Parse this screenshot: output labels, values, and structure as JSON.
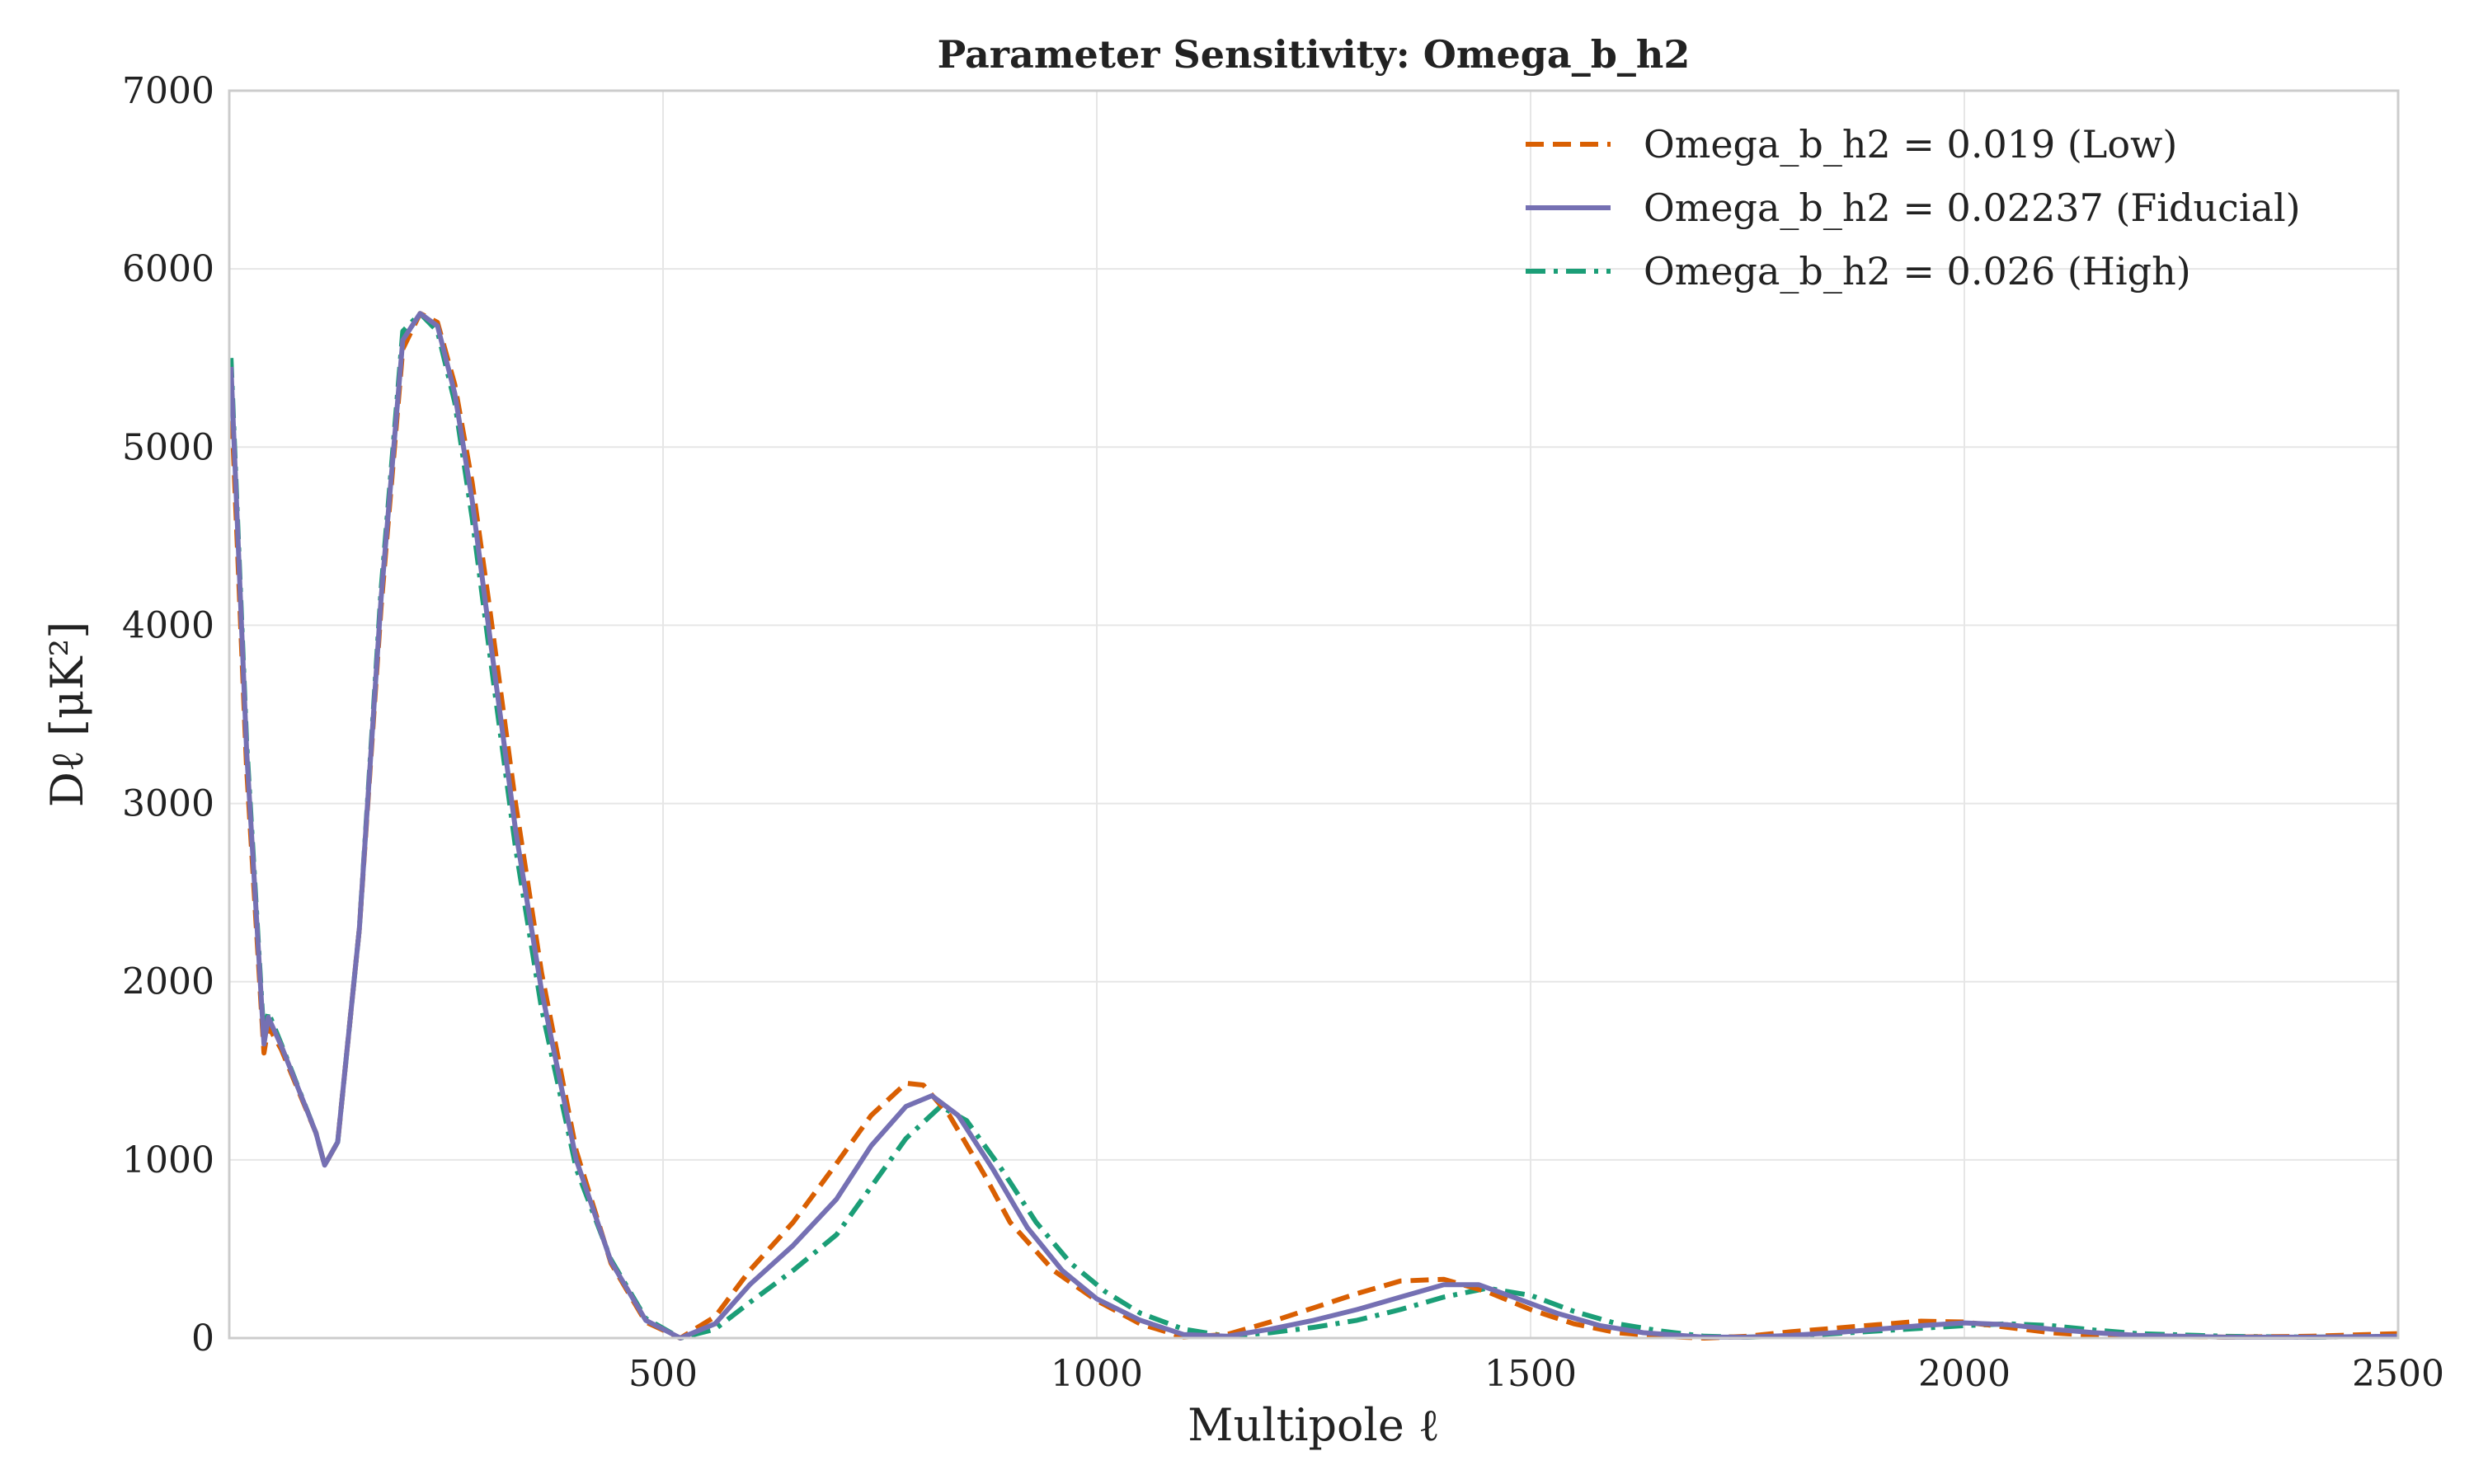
{
  "chart_data": {
    "type": "line",
    "title": "Parameter Sensitivity: Omega_b_h2",
    "xlabel": "Multipole ℓ",
    "ylabel": "Dℓ [μK²]",
    "xlim": [
      0,
      2500
    ],
    "ylim": [
      0,
      7000
    ],
    "xticks": [
      500,
      1000,
      1500,
      2000,
      2500
    ],
    "yticks": [
      0,
      1000,
      2000,
      3000,
      4000,
      5000,
      6000,
      7000
    ],
    "grid": true,
    "legend_position": "top-right",
    "series": [
      {
        "name": "Omega_b_h2 = 0.019 (Low)",
        "color": "#d95f02",
        "dash": "dashed",
        "points": [
          [
            2,
            5300
          ],
          [
            20,
            3200
          ],
          [
            40,
            1600
          ],
          [
            45,
            1750
          ],
          [
            60,
            1620
          ],
          [
            100,
            1150
          ],
          [
            110,
            970
          ],
          [
            125,
            1100
          ],
          [
            150,
            2300
          ],
          [
            175,
            4100
          ],
          [
            200,
            5550
          ],
          [
            220,
            5750
          ],
          [
            240,
            5700
          ],
          [
            260,
            5350
          ],
          [
            280,
            4800
          ],
          [
            300,
            4100
          ],
          [
            330,
            3000
          ],
          [
            360,
            2050
          ],
          [
            400,
            1050
          ],
          [
            440,
            420
          ],
          [
            480,
            90
          ],
          [
            520,
            0
          ],
          [
            560,
            120
          ],
          [
            600,
            380
          ],
          [
            650,
            650
          ],
          [
            700,
            980
          ],
          [
            740,
            1250
          ],
          [
            780,
            1430
          ],
          [
            800,
            1420
          ],
          [
            830,
            1250
          ],
          [
            870,
            920
          ],
          [
            900,
            650
          ],
          [
            950,
            380
          ],
          [
            1000,
            210
          ],
          [
            1050,
            80
          ],
          [
            1100,
            5
          ],
          [
            1150,
            20
          ],
          [
            1200,
            90
          ],
          [
            1250,
            170
          ],
          [
            1300,
            250
          ],
          [
            1350,
            320
          ],
          [
            1400,
            330
          ],
          [
            1450,
            260
          ],
          [
            1500,
            160
          ],
          [
            1550,
            80
          ],
          [
            1600,
            30
          ],
          [
            1650,
            10
          ],
          [
            1700,
            0
          ],
          [
            1750,
            10
          ],
          [
            1800,
            35
          ],
          [
            1850,
            55
          ],
          [
            1900,
            75
          ],
          [
            1950,
            95
          ],
          [
            2000,
            90
          ],
          [
            2050,
            60
          ],
          [
            2100,
            30
          ],
          [
            2150,
            15
          ],
          [
            2200,
            10
          ],
          [
            2300,
            5
          ],
          [
            2400,
            10
          ],
          [
            2500,
            25
          ]
        ]
      },
      {
        "name": "Omega_b_h2 = 0.02237 (Fiducial)",
        "color": "#7570b3",
        "dash": "solid",
        "points": [
          [
            2,
            5450
          ],
          [
            20,
            3300
          ],
          [
            40,
            1650
          ],
          [
            45,
            1800
          ],
          [
            60,
            1640
          ],
          [
            100,
            1150
          ],
          [
            110,
            970
          ],
          [
            125,
            1100
          ],
          [
            150,
            2300
          ],
          [
            175,
            4150
          ],
          [
            200,
            5600
          ],
          [
            220,
            5750
          ],
          [
            240,
            5680
          ],
          [
            260,
            5300
          ],
          [
            280,
            4700
          ],
          [
            300,
            3950
          ],
          [
            330,
            2850
          ],
          [
            360,
            1950
          ],
          [
            400,
            1000
          ],
          [
            440,
            430
          ],
          [
            480,
            100
          ],
          [
            520,
            0
          ],
          [
            560,
            80
          ],
          [
            600,
            300
          ],
          [
            650,
            520
          ],
          [
            700,
            780
          ],
          [
            740,
            1080
          ],
          [
            780,
            1300
          ],
          [
            810,
            1360
          ],
          [
            840,
            1250
          ],
          [
            880,
            950
          ],
          [
            920,
            620
          ],
          [
            960,
            380
          ],
          [
            1000,
            220
          ],
          [
            1050,
            100
          ],
          [
            1100,
            20
          ],
          [
            1150,
            10
          ],
          [
            1200,
            50
          ],
          [
            1250,
            100
          ],
          [
            1300,
            160
          ],
          [
            1350,
            230
          ],
          [
            1400,
            300
          ],
          [
            1440,
            300
          ],
          [
            1480,
            230
          ],
          [
            1530,
            140
          ],
          [
            1580,
            70
          ],
          [
            1630,
            30
          ],
          [
            1700,
            5
          ],
          [
            1750,
            5
          ],
          [
            1800,
            15
          ],
          [
            1850,
            30
          ],
          [
            1900,
            50
          ],
          [
            1950,
            70
          ],
          [
            2000,
            85
          ],
          [
            2050,
            75
          ],
          [
            2100,
            50
          ],
          [
            2150,
            30
          ],
          [
            2200,
            15
          ],
          [
            2300,
            5
          ],
          [
            2400,
            5
          ],
          [
            2500,
            10
          ]
        ]
      },
      {
        "name": "Omega_b_h2 = 0.026 (High)",
        "color": "#1b9e77",
        "dash": "dashdot",
        "points": [
          [
            2,
            5500
          ],
          [
            20,
            3350
          ],
          [
            40,
            1680
          ],
          [
            45,
            1830
          ],
          [
            60,
            1650
          ],
          [
            100,
            1150
          ],
          [
            110,
            970
          ],
          [
            125,
            1100
          ],
          [
            150,
            2300
          ],
          [
            175,
            4200
          ],
          [
            200,
            5650
          ],
          [
            220,
            5750
          ],
          [
            240,
            5650
          ],
          [
            260,
            5250
          ],
          [
            280,
            4600
          ],
          [
            300,
            3850
          ],
          [
            330,
            2750
          ],
          [
            360,
            1850
          ],
          [
            400,
            950
          ],
          [
            440,
            440
          ],
          [
            480,
            110
          ],
          [
            520,
            0
          ],
          [
            560,
            50
          ],
          [
            600,
            200
          ],
          [
            650,
            380
          ],
          [
            700,
            580
          ],
          [
            740,
            850
          ],
          [
            780,
            1120
          ],
          [
            820,
            1300
          ],
          [
            850,
            1220
          ],
          [
            890,
            950
          ],
          [
            930,
            650
          ],
          [
            970,
            420
          ],
          [
            1010,
            260
          ],
          [
            1050,
            140
          ],
          [
            1100,
            50
          ],
          [
            1150,
            10
          ],
          [
            1200,
            30
          ],
          [
            1250,
            60
          ],
          [
            1300,
            100
          ],
          [
            1350,
            160
          ],
          [
            1400,
            230
          ],
          [
            1450,
            280
          ],
          [
            1500,
            240
          ],
          [
            1550,
            150
          ],
          [
            1600,
            80
          ],
          [
            1650,
            40
          ],
          [
            1700,
            10
          ],
          [
            1750,
            5
          ],
          [
            1800,
            10
          ],
          [
            1850,
            25
          ],
          [
            1900,
            40
          ],
          [
            1950,
            55
          ],
          [
            2000,
            70
          ],
          [
            2050,
            80
          ],
          [
            2100,
            70
          ],
          [
            2150,
            45
          ],
          [
            2200,
            25
          ],
          [
            2300,
            10
          ],
          [
            2400,
            5
          ],
          [
            2500,
            10
          ]
        ]
      }
    ]
  }
}
